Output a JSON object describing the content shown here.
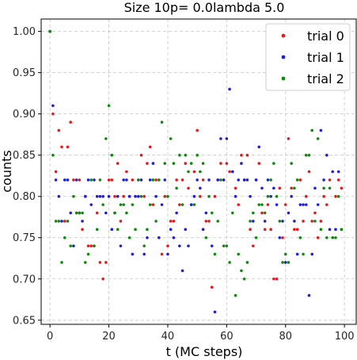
{
  "chart_data": {
    "type": "scatter",
    "title": "Size 10p= 0.0lambda 5.0",
    "xlabel": "t (MC steps)",
    "ylabel": "counts",
    "xlim": [
      -3,
      104
    ],
    "ylim": [
      0.645,
      1.015
    ],
    "xticks": [
      0,
      20,
      40,
      60,
      80,
      100
    ],
    "yticks": [
      0.65,
      0.7,
      0.75,
      0.8,
      0.85,
      0.9,
      0.95,
      1.0
    ],
    "grid": true,
    "legend_position": "top-right",
    "series": [
      {
        "name": "trial 0",
        "color": "#e41a1c",
        "x": [
          0,
          1,
          2,
          3,
          4,
          5,
          6,
          7,
          8,
          9,
          10,
          11,
          12,
          13,
          14,
          15,
          16,
          17,
          18,
          19,
          20,
          21,
          22,
          23,
          24,
          25,
          26,
          27,
          28,
          29,
          30,
          31,
          32,
          33,
          34,
          35,
          36,
          37,
          38,
          39,
          40,
          41,
          42,
          43,
          44,
          45,
          46,
          47,
          48,
          49,
          50,
          51,
          52,
          53,
          54,
          55,
          56,
          57,
          58,
          59,
          60,
          61,
          62,
          63,
          64,
          65,
          66,
          67,
          68,
          69,
          70,
          71,
          72,
          73,
          74,
          75,
          76,
          77,
          78,
          79,
          80,
          81,
          82,
          83,
          84,
          85,
          86,
          87,
          88,
          89,
          90,
          91,
          92,
          93,
          94,
          95,
          96,
          97,
          98,
          99
        ],
        "y": [
          1.0,
          0.9,
          0.83,
          0.88,
          0.86,
          0.77,
          0.86,
          0.89,
          0.82,
          0.78,
          0.82,
          0.76,
          0.8,
          0.74,
          0.74,
          0.74,
          0.78,
          0.72,
          0.7,
          0.72,
          0.82,
          0.82,
          0.8,
          0.84,
          0.77,
          0.8,
          0.83,
          0.8,
          0.82,
          0.8,
          0.82,
          0.85,
          0.8,
          0.84,
          0.86,
          0.79,
          0.82,
          0.75,
          0.73,
          0.8,
          0.74,
          0.77,
          0.77,
          0.82,
          0.79,
          0.82,
          0.84,
          0.81,
          0.79,
          0.83,
          0.88,
          0.8,
          0.82,
          0.77,
          0.77,
          0.69,
          0.8,
          0.82,
          0.84,
          0.82,
          0.84,
          0.83,
          0.83,
          0.81,
          0.79,
          0.85,
          0.82,
          0.85,
          0.76,
          0.74,
          0.82,
          0.84,
          0.78,
          0.76,
          0.79,
          0.76,
          0.7,
          0.7,
          0.81,
          0.75,
          0.79,
          0.87,
          0.81,
          0.76,
          0.76,
          0.82,
          0.77,
          0.8,
          0.83,
          0.77,
          0.78,
          0.75,
          0.77,
          0.8,
          0.79,
          0.82,
          0.75,
          0.8,
          0.82,
          0.81
        ]
      },
      {
        "name": "trial 1",
        "color": "#1f1fd8",
        "x": [
          0,
          1,
          2,
          3,
          4,
          5,
          6,
          7,
          8,
          9,
          10,
          11,
          12,
          13,
          14,
          15,
          16,
          17,
          18,
          19,
          20,
          21,
          22,
          23,
          24,
          25,
          26,
          27,
          28,
          29,
          30,
          31,
          32,
          33,
          34,
          35,
          36,
          37,
          38,
          39,
          40,
          41,
          42,
          43,
          44,
          45,
          46,
          47,
          48,
          49,
          50,
          51,
          52,
          53,
          54,
          55,
          56,
          57,
          58,
          59,
          60,
          61,
          62,
          63,
          64,
          65,
          66,
          67,
          68,
          69,
          70,
          71,
          72,
          73,
          74,
          75,
          76,
          77,
          78,
          79,
          80,
          81,
          82,
          83,
          84,
          85,
          86,
          87,
          88,
          89,
          90,
          91,
          92,
          93,
          94,
          95,
          96,
          97,
          98,
          99
        ],
        "y": [
          1.0,
          0.91,
          0.82,
          0.8,
          0.77,
          0.82,
          0.82,
          0.78,
          0.74,
          0.82,
          0.78,
          0.77,
          0.8,
          0.82,
          0.79,
          0.82,
          0.8,
          0.8,
          0.8,
          0.78,
          0.8,
          0.76,
          0.78,
          0.8,
          0.74,
          0.82,
          0.82,
          0.8,
          0.73,
          0.8,
          0.8,
          0.82,
          0.73,
          0.75,
          0.82,
          0.84,
          0.8,
          0.75,
          0.79,
          0.82,
          0.73,
          0.76,
          0.75,
          0.78,
          0.74,
          0.71,
          0.76,
          0.74,
          0.79,
          0.8,
          0.82,
          0.81,
          0.76,
          0.78,
          0.82,
          0.74,
          0.66,
          0.82,
          0.87,
          0.82,
          0.87,
          0.93,
          0.83,
          0.8,
          0.82,
          0.84,
          0.82,
          0.82,
          0.8,
          0.77,
          0.82,
          0.86,
          0.81,
          0.77,
          0.82,
          0.8,
          0.81,
          0.79,
          0.75,
          0.77,
          0.72,
          0.78,
          0.8,
          0.77,
          0.73,
          0.79,
          0.79,
          0.79,
          0.68,
          0.73,
          0.81,
          0.79,
          0.88,
          0.82,
          0.85,
          0.76,
          0.83,
          0.76,
          0.83,
          0.76
        ]
      },
      {
        "name": "trial 2",
        "color": "#0f8a0f",
        "x": [
          0,
          1,
          2,
          3,
          4,
          5,
          6,
          7,
          8,
          9,
          10,
          11,
          12,
          13,
          14,
          15,
          16,
          17,
          18,
          19,
          20,
          21,
          22,
          23,
          24,
          25,
          26,
          27,
          28,
          29,
          30,
          31,
          32,
          33,
          34,
          35,
          36,
          37,
          38,
          39,
          40,
          41,
          42,
          43,
          44,
          45,
          46,
          47,
          48,
          49,
          50,
          51,
          52,
          53,
          54,
          55,
          56,
          57,
          58,
          59,
          60,
          61,
          62,
          63,
          64,
          65,
          66,
          67,
          68,
          69,
          70,
          71,
          72,
          73,
          74,
          75,
          76,
          77,
          78,
          79,
          80,
          81,
          82,
          83,
          84,
          85,
          86,
          87,
          88,
          89,
          90,
          91,
          92,
          93,
          94,
          95,
          96,
          97,
          98,
          99
        ],
        "y": [
          1.0,
          0.85,
          0.77,
          0.77,
          0.72,
          0.75,
          0.77,
          0.74,
          0.8,
          0.78,
          0.78,
          0.78,
          0.72,
          0.73,
          0.82,
          0.74,
          0.76,
          0.82,
          0.79,
          0.87,
          0.91,
          0.85,
          0.78,
          0.76,
          0.79,
          0.79,
          0.78,
          0.75,
          0.79,
          0.76,
          0.82,
          0.8,
          0.74,
          0.76,
          0.79,
          0.82,
          0.77,
          0.82,
          0.89,
          0.84,
          0.8,
          0.87,
          0.84,
          0.81,
          0.85,
          0.79,
          0.85,
          0.83,
          0.84,
          0.79,
          0.85,
          0.83,
          0.84,
          0.75,
          0.8,
          0.78,
          0.73,
          0.77,
          0.82,
          0.74,
          0.74,
          0.72,
          0.78,
          0.68,
          0.73,
          0.71,
          0.7,
          0.72,
          0.77,
          0.78,
          0.75,
          0.79,
          0.79,
          0.78,
          0.8,
          0.82,
          0.84,
          0.8,
          0.77,
          0.72,
          0.73,
          0.72,
          0.84,
          0.81,
          0.82,
          0.75,
          0.73,
          0.85,
          0.85,
          0.88,
          0.77,
          0.87,
          0.76,
          0.81,
          0.75,
          0.81,
          0.75,
          0.75,
          0.8,
          0.76
        ]
      }
    ]
  }
}
